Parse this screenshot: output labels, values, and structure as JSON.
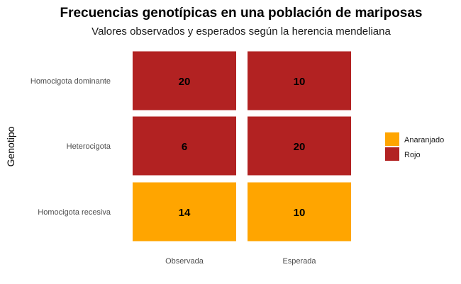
{
  "chart_data": {
    "type": "heatmap",
    "title": "Frecuencias genotípicas en una población de mariposas",
    "subtitle": "Valores observados y esperados según la herencia mendeliana",
    "ylabel": "Genotipo",
    "x_categories": [
      "Observada",
      "Esperada"
    ],
    "y_categories": [
      "Homocigota dominante",
      "Heterocigota",
      "Homocigota recesiva"
    ],
    "cells": [
      {
        "x": "Observada",
        "y": "Homocigota dominante",
        "value": 20,
        "fill": "Rojo"
      },
      {
        "x": "Esperada",
        "y": "Homocigota dominante",
        "value": 10,
        "fill": "Rojo"
      },
      {
        "x": "Observada",
        "y": "Heterocigota",
        "value": 6,
        "fill": "Rojo"
      },
      {
        "x": "Esperada",
        "y": "Heterocigota",
        "value": 20,
        "fill": "Rojo"
      },
      {
        "x": "Observada",
        "y": "Homocigota recesiva",
        "value": 14,
        "fill": "Anaranjado"
      },
      {
        "x": "Esperada",
        "y": "Homocigota recesiva",
        "value": 10,
        "fill": "Anaranjado"
      }
    ],
    "legend": [
      {
        "label": "Anaranjado",
        "color": "#FFA500"
      },
      {
        "label": "Rojo",
        "color": "#B22222"
      }
    ],
    "legend_position": "right",
    "grid": false
  }
}
